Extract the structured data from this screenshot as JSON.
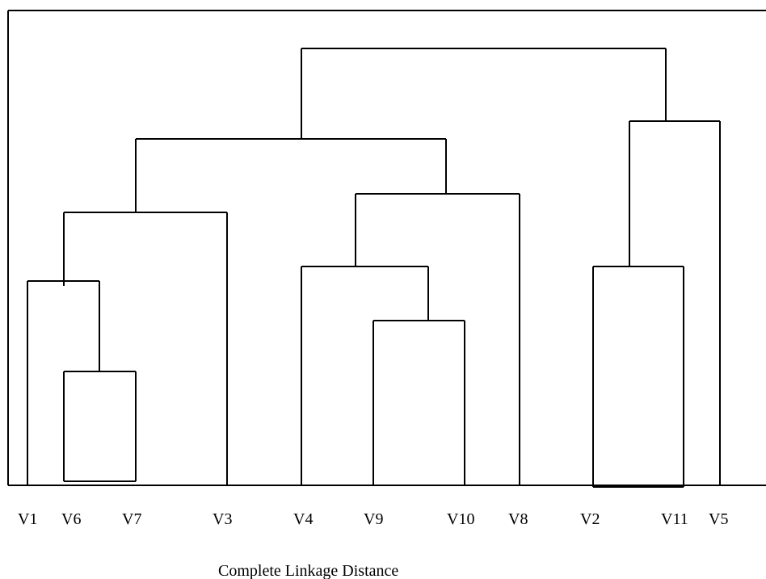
{
  "dendrogram": {
    "leaves": [
      "V1",
      "V6",
      "V7",
      "V3",
      "V4",
      "V9",
      "V10",
      "V8",
      "V2",
      "V11",
      "V5"
    ],
    "caption": "Complete Linkage Distance"
  }
}
